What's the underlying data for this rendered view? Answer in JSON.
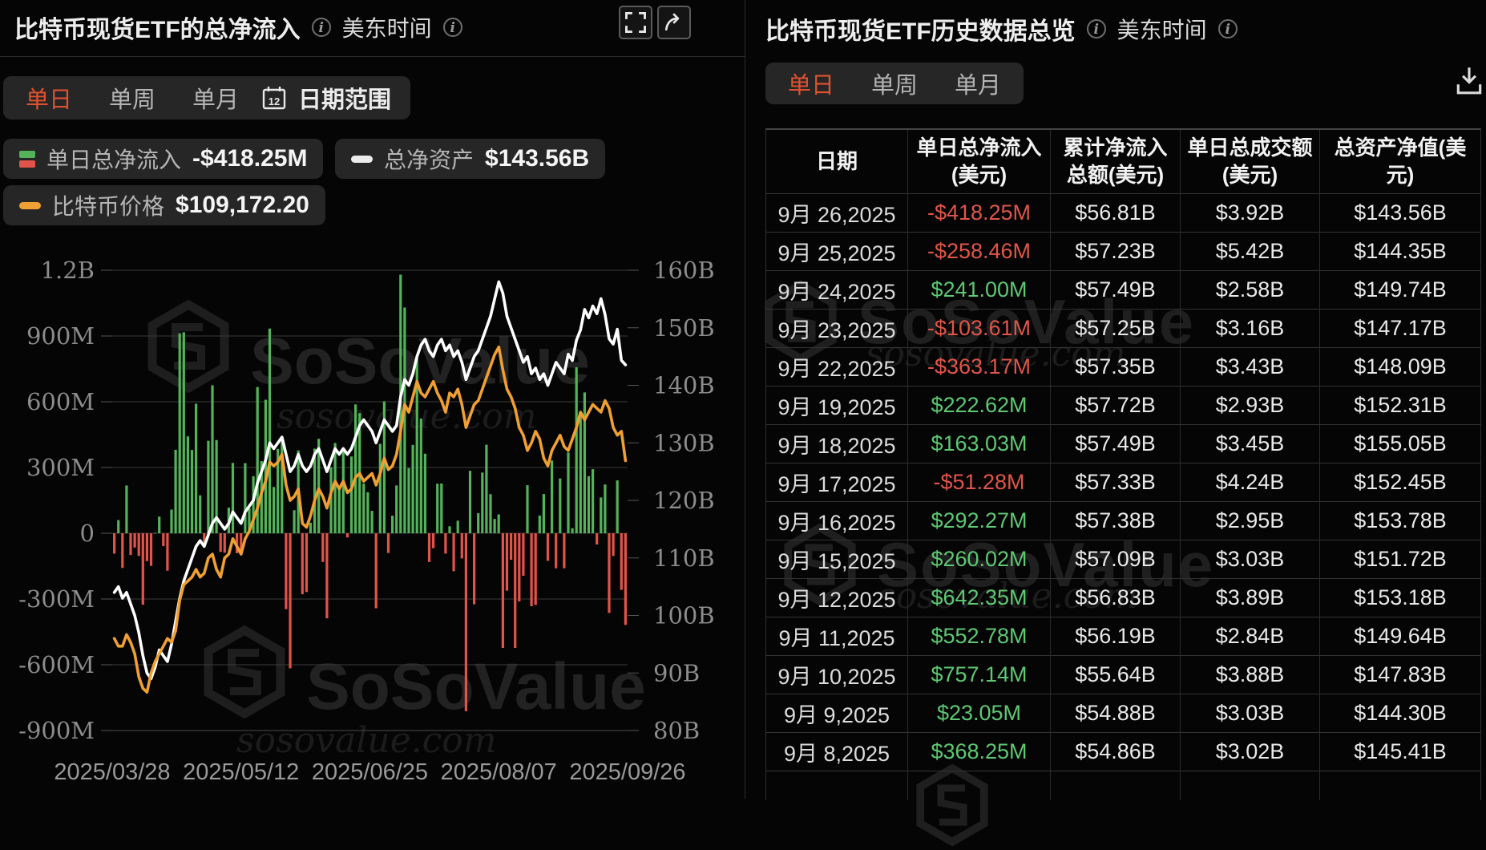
{
  "left_panel": {
    "title": "比特币现货ETF的总净流入",
    "timezone": "美东时间",
    "tabs": [
      "单日",
      "单周",
      "单月"
    ],
    "active_tab": "单日",
    "date_range_button": "日期范围",
    "calendar_day": "12",
    "legend": [
      {
        "label": "单日总净流入",
        "value": "-$418.25M",
        "icon": "green-red-bar-icon"
      },
      {
        "label": "总净资产",
        "value": "$143.56B",
        "icon": "white-dash-icon"
      },
      {
        "label": "比特币价格",
        "value": "$109,172.20",
        "icon": "orange-dash-icon"
      }
    ]
  },
  "right_panel": {
    "title": "比特币现货ETF历史数据总览",
    "timezone": "美东时间",
    "tabs": [
      "单日",
      "单周",
      "单月"
    ],
    "active_tab": "单日",
    "table": {
      "headers": [
        "日期",
        "单日总净流入(美元)",
        "累计净流入总额(美元)",
        "单日总成交额(美元)",
        "总资产净值(美元)"
      ],
      "rows": [
        [
          "9月 26,2025",
          "-$418.25M",
          "$56.81B",
          "$3.92B",
          "$143.56B"
        ],
        [
          "9月 25,2025",
          "-$258.46M",
          "$57.23B",
          "$5.42B",
          "$144.35B"
        ],
        [
          "9月 24,2025",
          "$241.00M",
          "$57.49B",
          "$2.58B",
          "$149.74B"
        ],
        [
          "9月 23,2025",
          "-$103.61M",
          "$57.25B",
          "$3.16B",
          "$147.17B"
        ],
        [
          "9月 22,2025",
          "-$363.17M",
          "$57.35B",
          "$3.43B",
          "$148.09B"
        ],
        [
          "9月 19,2025",
          "$222.62M",
          "$57.72B",
          "$2.93B",
          "$152.31B"
        ],
        [
          "9月 18,2025",
          "$163.03M",
          "$57.49B",
          "$3.45B",
          "$155.05B"
        ],
        [
          "9月 17,2025",
          "-$51.28M",
          "$57.33B",
          "$4.24B",
          "$152.45B"
        ],
        [
          "9月 16,2025",
          "$292.27M",
          "$57.38B",
          "$2.95B",
          "$153.78B"
        ],
        [
          "9月 15,2025",
          "$260.02M",
          "$57.09B",
          "$3.03B",
          "$151.72B"
        ],
        [
          "9月 12,2025",
          "$642.35M",
          "$56.83B",
          "$3.89B",
          "$153.18B"
        ],
        [
          "9月 11,2025",
          "$552.78M",
          "$56.19B",
          "$2.84B",
          "$149.64B"
        ],
        [
          "9月 10,2025",
          "$757.14M",
          "$55.64B",
          "$3.88B",
          "$147.83B"
        ],
        [
          "9月 9,2025",
          "$23.05M",
          "$54.88B",
          "$3.03B",
          "$144.30B"
        ],
        [
          "9月 8,2025",
          "$368.25M",
          "$54.86B",
          "$3.02B",
          "$145.41B"
        ]
      ]
    }
  },
  "watermark": {
    "brand": "SoSoValue",
    "domain": "sosovalue.com"
  },
  "colors": {
    "accent_active_tab": "#e0512f",
    "bar_positive": "#54b25a",
    "bar_negative": "#e2544a",
    "line_nav": "#ffffff",
    "line_price": "#f0a033",
    "text_positive": "#5ec873",
    "text_negative": "#e05549"
  },
  "chart_data": {
    "type": "bar+line",
    "title": "比特币现货ETF的总净流入 (单日)",
    "x_tick_labels": [
      "2025/03/28",
      "2025/05/12",
      "2025/06/25",
      "2025/08/07",
      "2025/09/26"
    ],
    "left_axis": {
      "tick_labels": [
        "1.2B",
        "900M",
        "600M",
        "300M",
        "0",
        "-300M",
        "-600M",
        "-900M"
      ],
      "max_M": 1200,
      "min_M": -900
    },
    "right_axis": {
      "tick_labels": [
        "160B",
        "150B",
        "140B",
        "130B",
        "120B",
        "110B",
        "100B",
        "90B",
        "80B"
      ],
      "max_B": 160,
      "min_B": 80
    },
    "price_axis_hidden": {
      "min_k": 74,
      "max_k": 134
    },
    "series": [
      {
        "name": "单日总净流入",
        "type": "bar",
        "unit": "$M",
        "values": [
          -93,
          60,
          -158,
          218,
          -99,
          -65,
          -103,
          -326,
          -127,
          -149,
          2,
          76,
          -59,
          -171,
          108,
          381,
          912,
          917,
          442,
          380,
          591,
          173,
          -56,
          422,
          675,
          425,
          -85,
          -89,
          117,
          321,
          -91,
          -96,
          320,
          115,
          260,
          667,
          329,
          609,
          934,
          211,
          385,
          433,
          -346,
          -616,
          105,
          378,
          -278,
          -268,
          48,
          386,
          431,
          -131,
          -388,
          301,
          412,
          216,
          389,
          -19,
          350,
          588,
          548,
          227,
          187,
          102,
          -342,
          408,
          602,
          -90,
          80,
          218,
          1180,
          1030,
          297,
          403,
          799,
          523,
          363,
          -131,
          -68,
          226,
          227,
          -93,
          32,
          -173,
          57,
          -115,
          -812,
          285,
          -324,
          92,
          277,
          404,
          178,
          65,
          86,
          -523,
          -262,
          -121,
          -523,
          -311,
          -194,
          219,
          -333,
          -327,
          81,
          179,
          -126,
          332,
          -160,
          250,
          -160,
          368.25,
          23.05,
          757.14,
          552.78,
          642.35,
          260.02,
          292.27,
          -51.28,
          163.03,
          222.62,
          -363.17,
          -103.61,
          241.0,
          -258.46,
          -418.25
        ]
      },
      {
        "name": "总净资产",
        "type": "line",
        "unit": "$B",
        "color": "#ffffff",
        "values": [
          104,
          105,
          103,
          104,
          102,
          100,
          97,
          93,
          90,
          89,
          91,
          94,
          93,
          92,
          95,
          99,
          103,
          106,
          108,
          110,
          112,
          113,
          112,
          114,
          116,
          117,
          116,
          115,
          116,
          118,
          117,
          116,
          118,
          119,
          120,
          123,
          125,
          127,
          130,
          129,
          130,
          131,
          128,
          125,
          126,
          128,
          126,
          125,
          126,
          128,
          129,
          127,
          125,
          127,
          129,
          128,
          129,
          128,
          129,
          131,
          133,
          134,
          133,
          132,
          130,
          132,
          134,
          133,
          132,
          133,
          138,
          141,
          140,
          142,
          145,
          147,
          148,
          146,
          145,
          147,
          148,
          146,
          147,
          145,
          146,
          144,
          141,
          143,
          145,
          146,
          148,
          150,
          152,
          155,
          158,
          156,
          152,
          150,
          148,
          146,
          144,
          145,
          142,
          143,
          141,
          142,
          140,
          142,
          144,
          143,
          142,
          145.41,
          144.3,
          147.83,
          149.64,
          153.18,
          151.72,
          153.78,
          152.45,
          155.05,
          152.31,
          148.09,
          147.17,
          149.74,
          144.35,
          143.56
        ]
      },
      {
        "name": "比特币价格",
        "type": "line",
        "unit": "$k",
        "color": "#f0a033",
        "values": [
          86,
          85,
          85,
          86.5,
          85.5,
          84,
          81,
          79.5,
          79,
          81.5,
          83,
          84,
          85,
          86,
          85.5,
          87,
          91,
          93,
          93.5,
          94,
          95,
          94,
          94.5,
          96.5,
          97,
          95,
          94,
          96.5,
          97,
          99,
          98,
          97,
          99,
          100,
          101.5,
          103,
          105,
          106.5,
          109,
          108.5,
          109,
          110,
          106,
          104,
          104.5,
          105.5,
          101,
          100.5,
          102,
          104,
          105.5,
          104.5,
          103,
          105,
          106.5,
          105.5,
          106.5,
          105,
          105.5,
          107,
          107.5,
          106.5,
          107,
          107.5,
          106,
          107.5,
          109.5,
          108,
          108.5,
          110,
          113,
          116.5,
          115.5,
          117.5,
          119.5,
          118,
          117.5,
          118.5,
          119.5,
          118,
          117,
          115.5,
          118,
          117.5,
          118.5,
          116.5,
          113.5,
          115,
          116.5,
          117,
          118.5,
          120,
          121.5,
          123,
          124,
          121,
          118.5,
          117.5,
          116,
          113.5,
          112.5,
          110.5,
          111.5,
          113,
          112,
          109.5,
          108.5,
          110.5,
          111.5,
          112.5,
          111,
          110.5,
          112,
          113.5,
          115.5,
          114.5,
          115.5,
          116.5,
          116,
          115.5,
          117,
          116,
          113.5,
          112.5,
          113,
          109.17
        ]
      }
    ]
  }
}
